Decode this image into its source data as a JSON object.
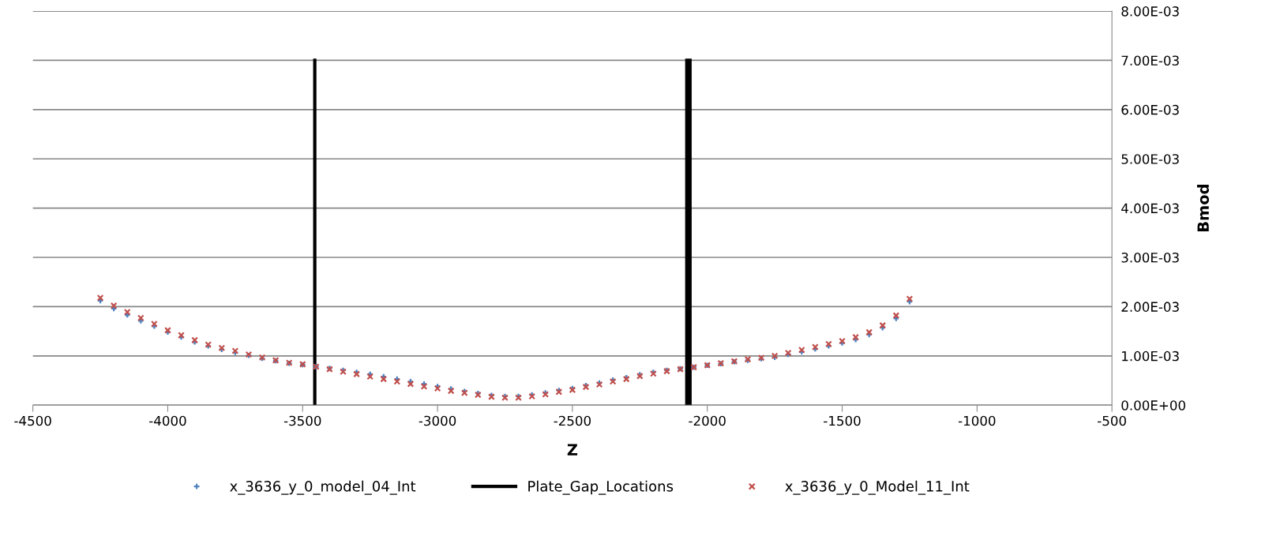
{
  "chart_data": {
    "type": "scatter",
    "xlabel": "Z",
    "ylabel": "Bmod",
    "grid": "y",
    "legend": "bottom",
    "xlim": [
      -4500,
      -500
    ],
    "xticks": [
      -4500,
      -4000,
      -3500,
      -3000,
      -2500,
      -2000,
      -1500,
      -1000,
      -500
    ],
    "ylim": [
      0,
      0.008
    ],
    "yticks": [
      {
        "value": 0,
        "label": "0.00E+00"
      },
      {
        "value": 0.001,
        "label": "1.00E-03"
      },
      {
        "value": 0.002,
        "label": "2.00E-03"
      },
      {
        "value": 0.003,
        "label": "3.00E-03"
      },
      {
        "value": 0.004,
        "label": "4.00E-03"
      },
      {
        "value": 0.005,
        "label": "5.00E-03"
      },
      {
        "value": 0.006,
        "label": "6.00E-03"
      },
      {
        "value": 0.007,
        "label": "7.00E-03"
      },
      {
        "value": 0.008,
        "label": "8.00E-03"
      }
    ],
    "x": [
      -4250,
      -4200,
      -4150,
      -4100,
      -4050,
      -4000,
      -3950,
      -3900,
      -3850,
      -3800,
      -3750,
      -3700,
      -3650,
      -3600,
      -3550,
      -3500,
      -3450,
      -3400,
      -3350,
      -3300,
      -3250,
      -3200,
      -3150,
      -3100,
      -3050,
      -3000,
      -2950,
      -2900,
      -2850,
      -2800,
      -2750,
      -2700,
      -2650,
      -2600,
      -2550,
      -2500,
      -2450,
      -2400,
      -2350,
      -2300,
      -2250,
      -2200,
      -2150,
      -2100,
      -2050,
      -2000,
      -1950,
      -1900,
      -1850,
      -1800,
      -1750,
      -1700,
      -1650,
      -1600,
      -1550,
      -1500,
      -1450,
      -1400,
      -1350,
      -1300,
      -1250
    ],
    "series": [
      {
        "name": "x_3636_y_0_model_04_Int",
        "marker": "plus",
        "color": "#4f81bd",
        "values": [
          0.00212,
          0.00196,
          0.00183,
          0.00171,
          0.0016,
          0.00148,
          0.00138,
          0.00128,
          0.0012,
          0.00113,
          0.00107,
          0.00101,
          0.00095,
          0.0009,
          0.00085,
          0.00082,
          0.00078,
          0.00075,
          0.00071,
          0.00067,
          0.00063,
          0.00058,
          0.00053,
          0.00048,
          0.00043,
          0.00038,
          0.00033,
          0.00028,
          0.00024,
          0.0002,
          0.00018,
          0.00018,
          0.00021,
          0.00025,
          0.0003,
          0.00034,
          0.0004,
          0.00045,
          0.00051,
          0.00056,
          0.00062,
          0.00067,
          0.00071,
          0.00074,
          0.00077,
          0.00081,
          0.00084,
          0.00088,
          0.00091,
          0.00094,
          0.00097,
          0.00103,
          0.00108,
          0.00114,
          0.0012,
          0.00126,
          0.00133,
          0.00143,
          0.00157,
          0.00176,
          0.0021
        ]
      },
      {
        "name": "Plate_Gap_Locations",
        "type": "line",
        "marker": "none",
        "color": "#000000",
        "x": [
          -3455,
          -3455,
          null,
          -2076,
          -2076,
          null,
          -2064,
          -2064
        ],
        "values": [
          0,
          0.007,
          null,
          0,
          0.007,
          null,
          0,
          0.007
        ]
      },
      {
        "name": "x_3636_y_0_Model_11_Int",
        "marker": "cross",
        "color": "#c0504d",
        "values": [
          0.00218,
          0.00202,
          0.00189,
          0.00177,
          0.00165,
          0.00152,
          0.00142,
          0.00132,
          0.00123,
          0.00116,
          0.0011,
          0.00103,
          0.00097,
          0.00091,
          0.00086,
          0.00083,
          0.00078,
          0.00073,
          0.00068,
          0.00063,
          0.00058,
          0.00053,
          0.00048,
          0.00043,
          0.00038,
          0.00034,
          0.00029,
          0.00025,
          0.00021,
          0.00017,
          0.00015,
          0.00015,
          0.00018,
          0.00022,
          0.00027,
          0.00031,
          0.00037,
          0.00042,
          0.00048,
          0.00053,
          0.00059,
          0.00064,
          0.00069,
          0.00073,
          0.00077,
          0.00081,
          0.00085,
          0.00089,
          0.00093,
          0.00096,
          0.001,
          0.00106,
          0.00112,
          0.00118,
          0.00124,
          0.0013,
          0.00138,
          0.00148,
          0.00162,
          0.00182,
          0.00216
        ]
      }
    ]
  }
}
